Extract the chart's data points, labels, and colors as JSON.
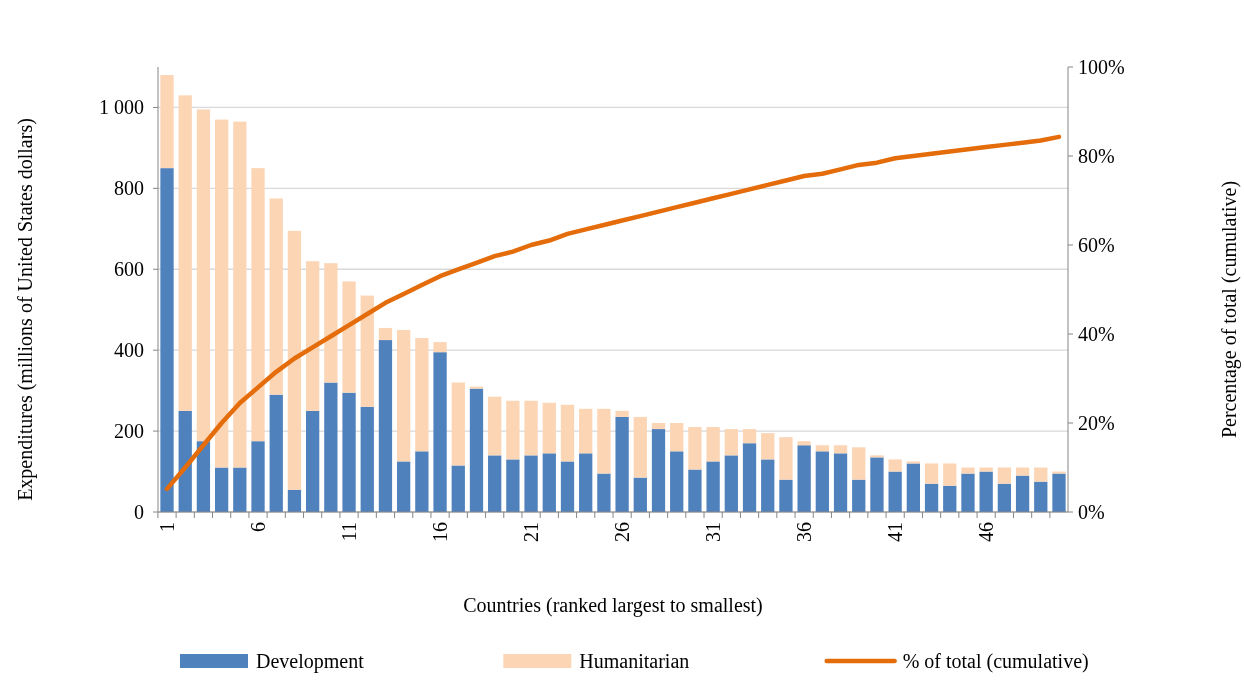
{
  "chart_data": {
    "type": "bar",
    "stacked": true,
    "xlabel": "Countries (ranked largest to smallest)",
    "ylabel": "Expenditures (millions of United States dollars)",
    "y2label": "Percentage of total (cumulative)",
    "categories": [
      "1",
      null,
      null,
      null,
      null,
      "6",
      null,
      null,
      null,
      null,
      "11",
      null,
      null,
      null,
      null,
      "16",
      null,
      null,
      null,
      null,
      "21",
      null,
      null,
      null,
      null,
      "26",
      null,
      null,
      null,
      null,
      "31",
      null,
      null,
      null,
      null,
      "36",
      null,
      null,
      null,
      null,
      "41",
      null,
      null,
      null,
      null,
      "46",
      null,
      null,
      null,
      null
    ],
    "series": [
      {
        "name": "Development",
        "color": "#4f81bd",
        "values": [
          850,
          250,
          175,
          110,
          110,
          175,
          290,
          55,
          250,
          320,
          295,
          260,
          425,
          125,
          150,
          395,
          115,
          305,
          140,
          130,
          140,
          145,
          125,
          145,
          95,
          235,
          85,
          205,
          150,
          105,
          125,
          140,
          170,
          130,
          80,
          165,
          150,
          145,
          80,
          135,
          100,
          120,
          70,
          65,
          95,
          100,
          70,
          90,
          75,
          95
        ]
      },
      {
        "name": "Humanitarian",
        "color": "#fcd5b5",
        "values": [
          230,
          780,
          820,
          860,
          855,
          675,
          485,
          640,
          370,
          295,
          275,
          275,
          30,
          325,
          280,
          25,
          205,
          5,
          145,
          145,
          135,
          125,
          140,
          110,
          160,
          15,
          150,
          15,
          70,
          105,
          85,
          65,
          35,
          65,
          105,
          10,
          15,
          20,
          80,
          5,
          30,
          5,
          50,
          55,
          15,
          10,
          40,
          20,
          35,
          5
        ]
      },
      {
        "name": "% of total (cumulative)",
        "type": "line",
        "axis": "y2",
        "color": "#e46c0a",
        "values": [
          0.052,
          0.1,
          0.15,
          0.2,
          0.245,
          0.28,
          0.315,
          0.345,
          0.37,
          0.395,
          0.42,
          0.445,
          0.47,
          0.49,
          0.51,
          0.53,
          0.545,
          0.56,
          0.575,
          0.585,
          0.6,
          0.61,
          0.625,
          0.635,
          0.645,
          0.655,
          0.665,
          0.675,
          0.685,
          0.695,
          0.705,
          0.715,
          0.725,
          0.735,
          0.745,
          0.755,
          0.76,
          0.77,
          0.78,
          0.785,
          0.795,
          0.8,
          0.805,
          0.81,
          0.815,
          0.82,
          0.825,
          0.83,
          0.835,
          0.843
        ]
      }
    ],
    "ylim": [
      0,
      1100
    ],
    "yticks": [
      0,
      200,
      400,
      600,
      800,
      {
        "value": 1000,
        "label": "1 000"
      }
    ],
    "y2lim": [
      0,
      1
    ],
    "y2ticks": [
      {
        "value": 0,
        "label": "0%"
      },
      {
        "value": 0.2,
        "label": "20%"
      },
      {
        "value": 0.4,
        "label": "40%"
      },
      {
        "value": 0.6,
        "label": "60%"
      },
      {
        "value": 0.8,
        "label": "80%"
      },
      {
        "value": 1,
        "label": "100%"
      }
    ],
    "grid": "y",
    "legend": "bottom"
  }
}
